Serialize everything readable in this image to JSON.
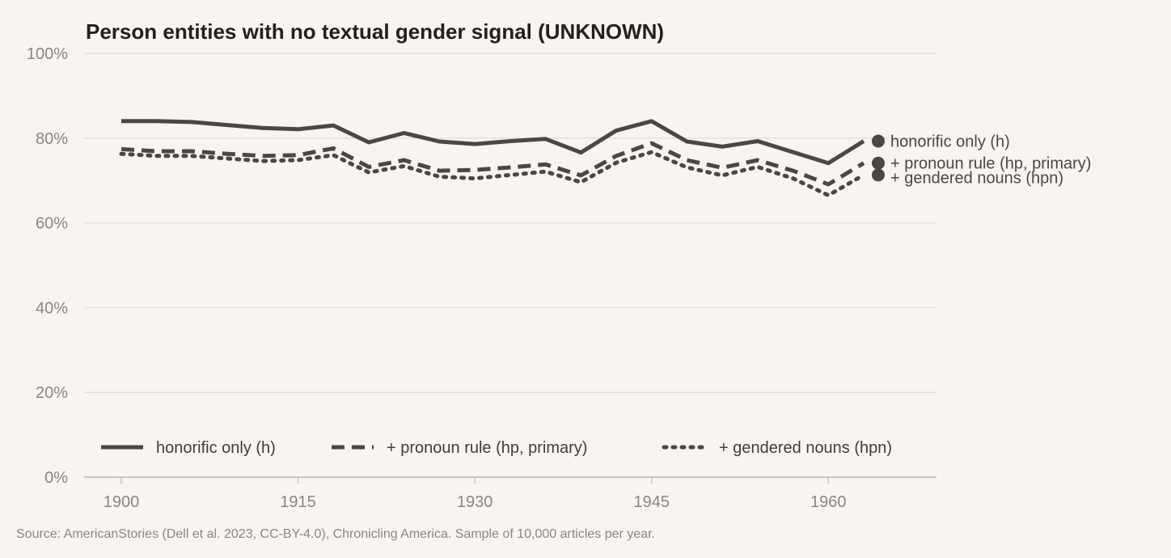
{
  "chart_data": {
    "type": "line",
    "title": "Person entities with no textual gender signal (UNKNOWN)",
    "xlabel": "",
    "ylabel": "",
    "x": [
      1900,
      1903,
      1906,
      1909,
      1912,
      1915,
      1918,
      1921,
      1924,
      1927,
      1930,
      1933,
      1936,
      1939,
      1942,
      1945,
      1948,
      1951,
      1954,
      1957,
      1960,
      1963
    ],
    "xlim": [
      1900,
      1963
    ],
    "xticks": [
      1900,
      1915,
      1930,
      1945,
      1960
    ],
    "xtick_labels": [
      "1900",
      "1915",
      "1930",
      "1945",
      "1960"
    ],
    "ylim": [
      0,
      100
    ],
    "yticks": [
      0,
      20,
      40,
      60,
      80,
      100
    ],
    "ytick_labels": [
      "0%",
      "20%",
      "40%",
      "60%",
      "80%",
      "100%"
    ],
    "grid": true,
    "legend_position": "bottom",
    "series": [
      {
        "name": "honorific only (h)",
        "style": "solid",
        "values": [
          84.0,
          84.0,
          83.8,
          83.1,
          82.4,
          82.1,
          83.0,
          79.0,
          81.2,
          79.2,
          78.6,
          79.3,
          79.8,
          76.6,
          81.8,
          84.0,
          79.2,
          78.0,
          79.3,
          76.7,
          74.1,
          79.3
        ]
      },
      {
        "name": "+ pronoun rule (hp, primary)",
        "style": "dashed",
        "values": [
          77.4,
          76.9,
          76.9,
          76.3,
          75.8,
          76.0,
          77.6,
          73.2,
          74.8,
          72.3,
          72.5,
          73.1,
          73.8,
          71.2,
          75.8,
          78.8,
          74.8,
          73.0,
          74.8,
          72.3,
          69.1,
          74.1
        ]
      },
      {
        "name": "+ gendered nouns (hpn)",
        "style": "dotted",
        "values": [
          76.3,
          75.8,
          75.8,
          75.2,
          74.6,
          74.8,
          76.0,
          71.9,
          73.4,
          70.9,
          70.5,
          71.3,
          72.1,
          69.6,
          74.2,
          76.7,
          73.1,
          71.2,
          73.2,
          70.5,
          66.5,
          71.3
        ]
      }
    ],
    "source": "Source: AmericanStories (Dell et al. 2023, CC-BY-4.0), Chronicling America. Sample of 10,000 articles per year.",
    "colors": {
      "line": "#4a4744",
      "grid": "#e4e0da",
      "axis": "#c9c4be",
      "tick_text": "#8a8682",
      "background": "#f8f5f0"
    }
  }
}
